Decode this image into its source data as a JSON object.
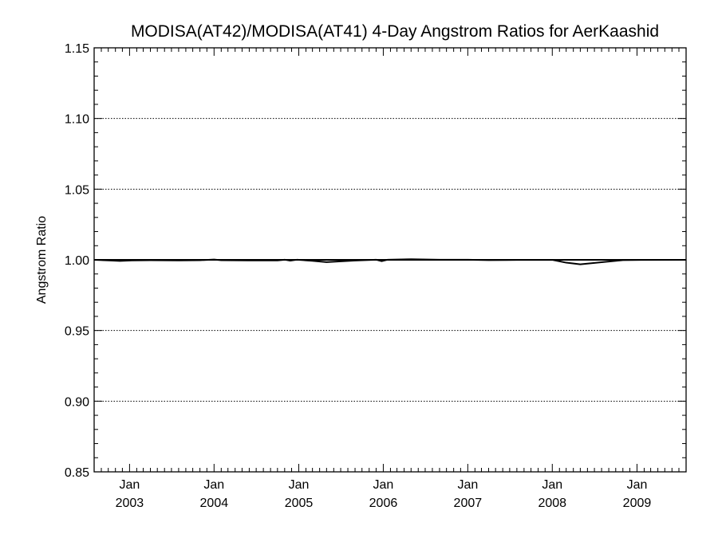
{
  "chart_data": {
    "type": "line",
    "title": "MODISA(AT42)/MODISA(AT41) 4-Day Angstrom Ratios for AerKaashid",
    "xlabel": "",
    "ylabel": "Angstrom Ratio",
    "ylim": [
      0.85,
      1.15
    ],
    "xlim": [
      "2002-08-01",
      "2009-08-01"
    ],
    "y_ticks": [
      "0.85",
      "0.90",
      "0.95",
      "1.00",
      "1.05",
      "1.10",
      "1.15"
    ],
    "x_ticks": [
      {
        "month": "Jan",
        "year": "2003",
        "date": "2003-01-01"
      },
      {
        "month": "Jan",
        "year": "2004",
        "date": "2004-01-01"
      },
      {
        "month": "Jan",
        "year": "2005",
        "date": "2005-01-01"
      },
      {
        "month": "Jan",
        "year": "2006",
        "date": "2006-01-01"
      },
      {
        "month": "Jan",
        "year": "2007",
        "date": "2007-01-01"
      },
      {
        "month": "Jan",
        "year": "2008",
        "date": "2008-01-01"
      },
      {
        "month": "Jan",
        "year": "2009",
        "date": "2009-01-01"
      }
    ],
    "grid": "dotted horizontal at major y ticks",
    "reference_line": 1.0,
    "series": [
      {
        "color": "#000000",
        "points": [
          {
            "x": "2002-08-01",
            "y": 1.0
          },
          {
            "x": "2002-10-15",
            "y": 0.9995
          },
          {
            "x": "2002-11-20",
            "y": 0.9992
          },
          {
            "x": "2003-01-10",
            "y": 0.9996
          },
          {
            "x": "2003-04-01",
            "y": 0.9997
          },
          {
            "x": "2003-08-01",
            "y": 0.9996
          },
          {
            "x": "2003-11-01",
            "y": 0.9997
          },
          {
            "x": "2004-01-01",
            "y": 1.0002
          },
          {
            "x": "2004-02-01",
            "y": 0.9997
          },
          {
            "x": "2004-06-01",
            "y": 0.9996
          },
          {
            "x": "2004-10-01",
            "y": 0.9996
          },
          {
            "x": "2004-11-01",
            "y": 1.0001
          },
          {
            "x": "2004-11-25",
            "y": 0.9994
          },
          {
            "x": "2004-12-25",
            "y": 1.0001
          },
          {
            "x": "2005-03-01",
            "y": 0.9993
          },
          {
            "x": "2005-05-01",
            "y": 0.9984
          },
          {
            "x": "2005-09-01",
            "y": 0.9995
          },
          {
            "x": "2005-12-01",
            "y": 1.0001
          },
          {
            "x": "2005-12-25",
            "y": 0.9991
          },
          {
            "x": "2006-01-20",
            "y": 1.0001
          },
          {
            "x": "2006-05-01",
            "y": 1.0004
          },
          {
            "x": "2006-09-01",
            "y": 1.0001
          },
          {
            "x": "2007-01-01",
            "y": 1.0001
          },
          {
            "x": "2007-04-01",
            "y": 0.9998
          },
          {
            "x": "2007-08-01",
            "y": 0.9999
          },
          {
            "x": "2008-01-01",
            "y": 1.0
          },
          {
            "x": "2008-03-01",
            "y": 0.998
          },
          {
            "x": "2008-05-01",
            "y": 0.9968
          },
          {
            "x": "2008-11-01",
            "y": 0.9998
          },
          {
            "x": "2009-01-15",
            "y": 0.9999
          },
          {
            "x": "2009-08-01",
            "y": 1.0
          }
        ]
      }
    ]
  }
}
